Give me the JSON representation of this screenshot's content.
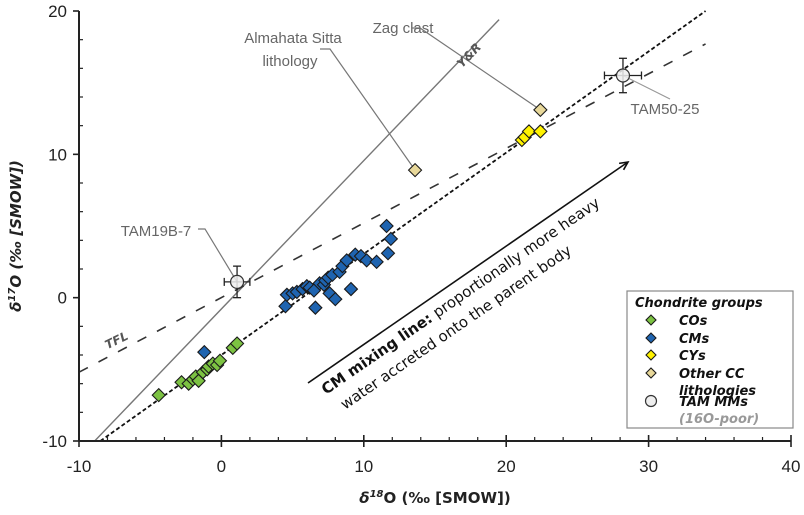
{
  "chart_data": {
    "type": "scatter",
    "title": "",
    "xlabel": "δ18O (‰ [SMOW])",
    "xlabel_parts": {
      "delta": "δ",
      "sup": "18",
      "rest": "O (‰ [SMOW])"
    },
    "ylabel": "δ17O (‰ [SMOW])",
    "ylabel_parts": {
      "delta": "δ",
      "sup": "17",
      "rest": "O (‰ [SMOW])"
    },
    "xlim": [
      -10,
      40
    ],
    "ylim": [
      -10,
      20
    ],
    "x_ticks": [
      -10,
      0,
      10,
      20,
      30,
      40
    ],
    "y_ticks": [
      -10,
      0,
      10,
      20
    ],
    "x_tick_labels": [
      "-10",
      "0",
      "10",
      "20",
      "30",
      "40"
    ],
    "y_tick_labels": [
      "-10",
      "0",
      "10",
      "20"
    ],
    "grid": false,
    "reference_lines": [
      {
        "name": "Y&R",
        "label": "Y&R",
        "style": "solid",
        "color": "#777777",
        "x": [
          -8.9,
          19.5
        ],
        "y": [
          -10,
          19.4
        ]
      },
      {
        "name": "TFL",
        "label": "TFL",
        "style": "dashed",
        "color": "#333333",
        "x": [
          -10,
          34
        ],
        "y": [
          -5.2,
          17.7
        ]
      },
      {
        "name": "CM mixing line",
        "label": "",
        "style": "dotted",
        "color": "#111111",
        "x": [
          -8.5,
          34
        ],
        "y": [
          -10,
          20
        ]
      }
    ],
    "series": [
      {
        "name": "COs",
        "color": "#7cc242",
        "marker": "diamond",
        "points": [
          [
            -4.4,
            -6.8
          ],
          [
            -2.8,
            -5.9
          ],
          [
            -2.3,
            -6.0
          ],
          [
            -2.0,
            -5.7
          ],
          [
            -1.8,
            -5.5
          ],
          [
            -1.6,
            -5.8
          ],
          [
            -1.3,
            -5.2
          ],
          [
            -1.0,
            -5.0
          ],
          [
            -0.9,
            -4.8
          ],
          [
            -0.6,
            -4.6
          ],
          [
            -0.3,
            -4.7
          ],
          [
            -0.1,
            -4.4
          ],
          [
            0.8,
            -3.5
          ],
          [
            1.1,
            -3.2
          ]
        ]
      },
      {
        "name": "CMs",
        "color": "#1f64b0",
        "marker": "diamond",
        "points": [
          [
            -1.2,
            -3.8
          ],
          [
            4.5,
            -0.6
          ],
          [
            4.6,
            0.2
          ],
          [
            5.0,
            0.3
          ],
          [
            5.3,
            0.4
          ],
          [
            5.7,
            0.6
          ],
          [
            6.0,
            0.8
          ],
          [
            6.2,
            0.7
          ],
          [
            6.5,
            0.5
          ],
          [
            6.6,
            -0.7
          ],
          [
            6.9,
            1.0
          ],
          [
            7.2,
            0.9
          ],
          [
            7.3,
            1.2
          ],
          [
            7.5,
            1.4
          ],
          [
            7.6,
            0.3
          ],
          [
            7.8,
            1.6
          ],
          [
            8.0,
            -0.1
          ],
          [
            8.3,
            1.8
          ],
          [
            8.5,
            2.2
          ],
          [
            8.8,
            2.6
          ],
          [
            9.1,
            0.6
          ],
          [
            9.4,
            3.0
          ],
          [
            9.8,
            2.9
          ],
          [
            10.2,
            2.6
          ],
          [
            10.9,
            2.5
          ],
          [
            11.6,
            5.0
          ],
          [
            11.7,
            3.1
          ],
          [
            11.9,
            4.1
          ]
        ]
      },
      {
        "name": "CYs",
        "color": "#fff200",
        "marker": "diamond",
        "points": [
          [
            21.1,
            11.0
          ],
          [
            21.3,
            11.2
          ],
          [
            21.6,
            11.6
          ],
          [
            22.4,
            11.6
          ]
        ]
      },
      {
        "name": "Other CC lithologies",
        "color": "#e8d89a",
        "marker": "diamond",
        "points": [
          [
            13.6,
            8.9
          ],
          [
            22.4,
            13.1
          ]
        ]
      },
      {
        "name": "TAM MMs (16O-poor)",
        "color": "#eeeeee",
        "marker": "circle",
        "points": [
          [
            1.1,
            1.1,
            0.9,
            1.1
          ],
          [
            28.2,
            15.5,
            1.3,
            1.2
          ]
        ],
        "point_format": "[x, y, x_err, y_err]"
      }
    ],
    "annotations": [
      {
        "text": "Almahata Sitta",
        "text2": "lithology",
        "target": [
          13.6,
          8.9
        ]
      },
      {
        "text": "Zag clast",
        "target": [
          22.4,
          13.1
        ]
      },
      {
        "text": "TAM19B-7",
        "target": [
          1.1,
          1.1
        ]
      },
      {
        "text": "TAM50-25",
        "target": [
          28.2,
          15.5
        ]
      }
    ],
    "mixing_arrow": {
      "bold_text": "CM mixing line:",
      "text_line1": " proportionally more heavy",
      "text_line2": "water accreted onto the parent body"
    },
    "legend": {
      "title": "Chondrite groups",
      "placement": "bottom-right",
      "entries": [
        {
          "label": "COs",
          "color": "#7cc242",
          "marker": "diamond"
        },
        {
          "label": "CMs",
          "color": "#1f64b0",
          "marker": "diamond"
        },
        {
          "label": "CYs",
          "color": "#fff200",
          "marker": "diamond"
        },
        {
          "label": "Other CC",
          "label2": "lithologies",
          "color": "#e8d89a",
          "marker": "diamond"
        },
        {
          "label": "TAM MMs",
          "label2": "(16O-poor)",
          "color": "#eeeeee",
          "marker": "circle"
        }
      ]
    }
  }
}
